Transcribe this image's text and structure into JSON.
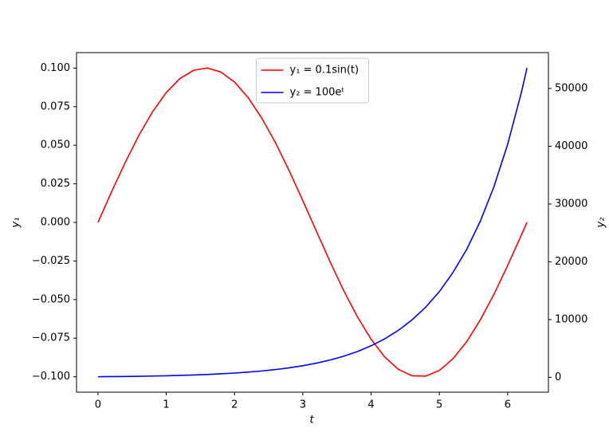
{
  "chart_data": {
    "type": "line",
    "xlabel": "t",
    "ylabel": "y₁",
    "y2label": "y₂",
    "x": [
      0,
      0.2,
      0.4,
      0.6,
      0.8,
      1.0,
      1.2,
      1.4,
      1.6,
      1.8,
      2.0,
      2.2,
      2.4,
      2.6,
      2.8,
      3.0,
      3.2,
      3.4,
      3.6,
      3.8,
      4.0,
      4.2,
      4.4,
      4.6,
      4.8,
      5.0,
      5.2,
      5.4,
      5.6,
      5.8,
      6.0,
      6.2,
      6.283
    ],
    "series": [
      {
        "name": "y₁ = 0.1sin(t)",
        "color": "#ff0000",
        "axis": "y",
        "values": [
          0,
          0.0199,
          0.0389,
          0.0565,
          0.0717,
          0.0841,
          0.0932,
          0.0985,
          0.1,
          0.0974,
          0.0909,
          0.0808,
          0.0675,
          0.0516,
          0.0335,
          0.0141,
          -0.0058,
          -0.0256,
          -0.0443,
          -0.0612,
          -0.0757,
          -0.0872,
          -0.0952,
          -0.0994,
          -0.0996,
          -0.0959,
          -0.0883,
          -0.0773,
          -0.0631,
          -0.0465,
          -0.0279,
          -0.0083,
          0
        ]
      },
      {
        "name": "y₂ = 100eᵗ",
        "color": "#0000ff",
        "axis": "y2",
        "values": [
          100,
          122,
          149,
          182,
          223,
          272,
          332,
          406,
          495,
          605,
          739,
          903,
          1102,
          1346,
          1644,
          2009,
          2453,
          2996,
          3660,
          4470,
          5460,
          6669,
          8145,
          9948,
          12151,
          14841,
          18174,
          22147,
          27043,
          33030,
          40343,
          49275,
          53540
        ]
      }
    ],
    "xlim": [
      -0.314,
      6.597
    ],
    "xticks": [
      0,
      1,
      2,
      3,
      4,
      5,
      6
    ],
    "ylim": [
      -0.11,
      0.11
    ],
    "yticks": [
      {
        "value": -0.1,
        "label": "−0.100"
      },
      {
        "value": -0.075,
        "label": "−0.075"
      },
      {
        "value": -0.05,
        "label": "−0.050"
      },
      {
        "value": -0.025,
        "label": "−0.025"
      },
      {
        "value": 0,
        "label": "0.000"
      },
      {
        "value": 0.025,
        "label": "0.025"
      },
      {
        "value": 0.05,
        "label": "0.050"
      },
      {
        "value": 0.075,
        "label": "0.075"
      },
      {
        "value": 0.1,
        "label": "0.100"
      }
    ],
    "y2lim": [
      -2572,
      56212
    ],
    "y2ticks": [
      0,
      10000,
      20000,
      30000,
      40000,
      50000
    ],
    "grid": false,
    "legend": "upper center"
  }
}
